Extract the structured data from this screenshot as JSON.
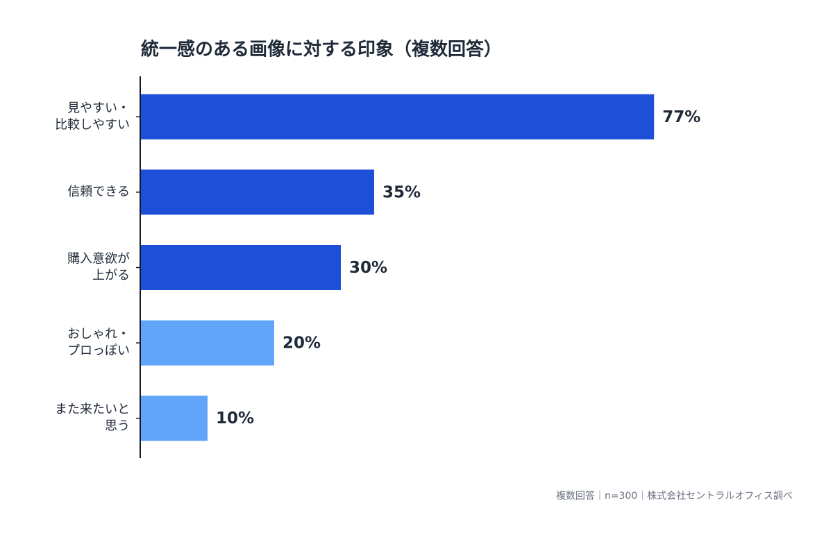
{
  "chart_data": {
    "type": "hbar",
    "title": "統一感のある画像に対する印象（複数回答）",
    "categories": [
      [
        "見やすい・",
        "比較しやすい"
      ],
      [
        "信頼できる"
      ],
      [
        "購入意欲が",
        "上がる"
      ],
      [
        "おしゃれ・",
        "プロっぽい"
      ],
      [
        "また来たいと",
        "思う"
      ]
    ],
    "values": [
      77,
      35,
      30,
      20,
      10
    ],
    "value_labels": [
      "77%",
      "35%",
      "30%",
      "20%",
      "10%"
    ],
    "colors": [
      "#1e4fd8",
      "#1e4fd8",
      "#1e4fd8",
      "#60a5fa",
      "#60a5fa"
    ],
    "xlim": [
      0,
      100
    ],
    "note": "複数回答｜n=300｜株式会社セントラルオフィス調べ"
  }
}
